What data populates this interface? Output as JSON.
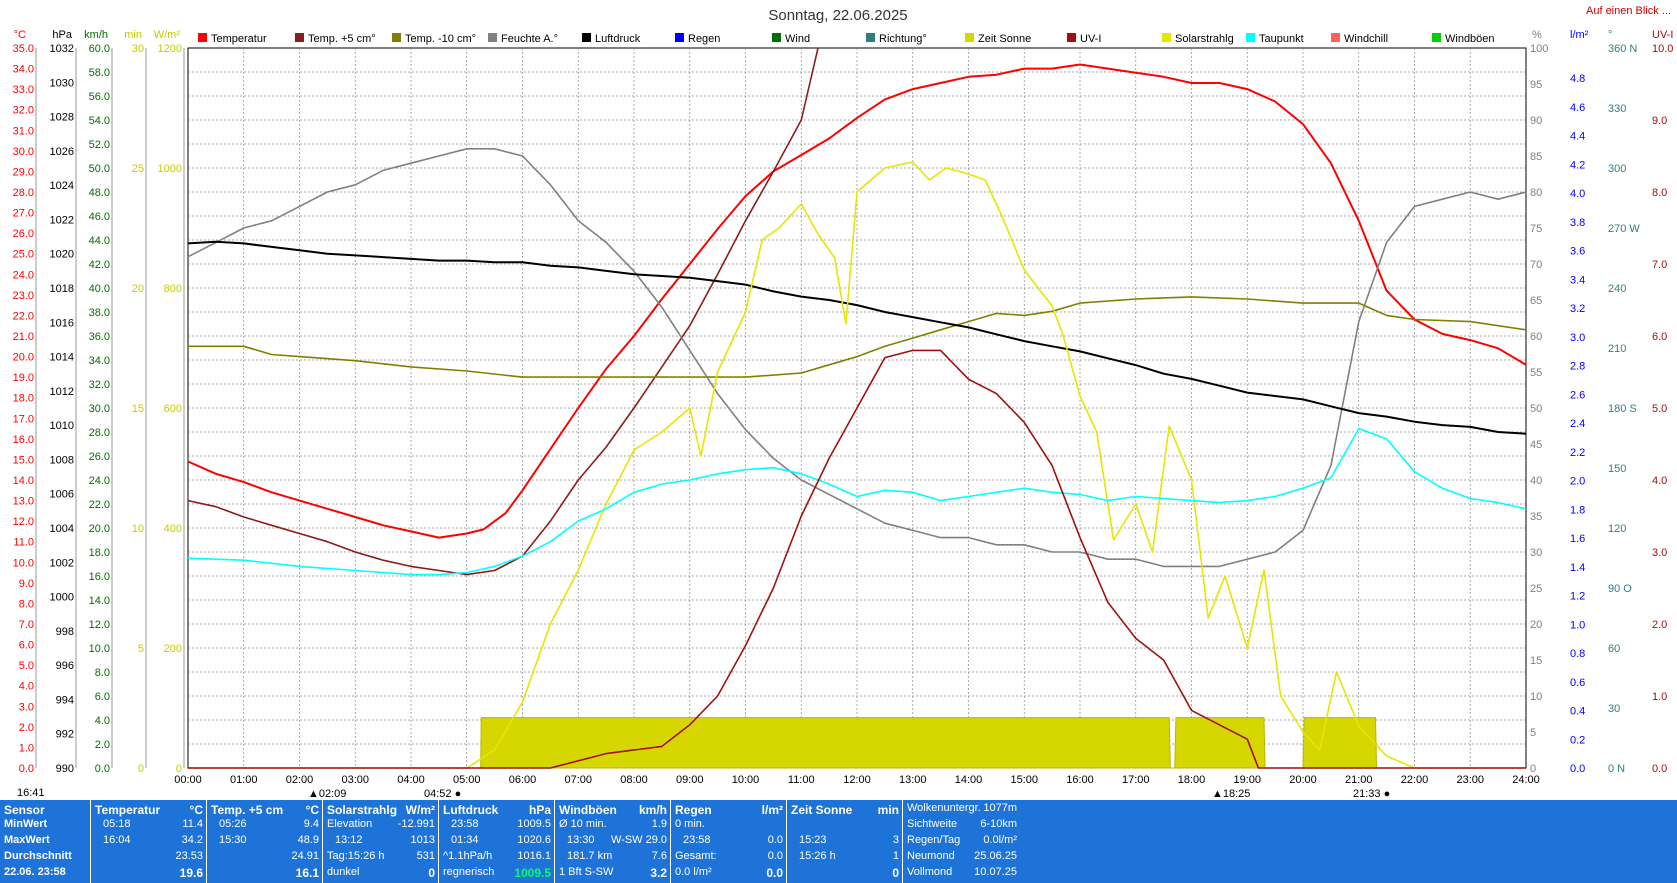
{
  "header": {
    "title": "Sonntag, 22.06.2025",
    "corner_link": "Auf einen Blick ..."
  },
  "legend": [
    {
      "label": "Temperatur",
      "color": "#ff0000"
    },
    {
      "label": "Temp. +5 cm°",
      "color": "#8b1c1c"
    },
    {
      "label": "Temp. -10 cm°",
      "color": "#808000"
    },
    {
      "label": "Feuchte A.°",
      "color": "#808080"
    },
    {
      "label": "Luftdruck",
      "color": "#000000"
    },
    {
      "label": "Regen",
      "color": "#0000ff"
    },
    {
      "label": "Wind",
      "color": "#007000"
    },
    {
      "label": "Richtung°",
      "color": "#2f7f7f"
    },
    {
      "label": "Zeit Sonne",
      "color": "#d6d600"
    },
    {
      "label": "UV-I",
      "color": "#a01010"
    },
    {
      "label": "Solarstrahlg",
      "color": "#e6e600"
    },
    {
      "label": "Taupunkt",
      "color": "#00ffff"
    },
    {
      "label": "Windchill",
      "color": "#ff6060"
    },
    {
      "label": "Windböen",
      "color": "#00d000"
    }
  ],
  "axes_left": [
    {
      "unit": "°C",
      "color": "#ff0000",
      "ticks": [
        "35.0",
        "34.0",
        "33.0",
        "32.0",
        "31.0",
        "30.0",
        "29.0",
        "28.0",
        "27.0",
        "26.0",
        "25.0",
        "24.0",
        "23.0",
        "22.0",
        "21.0",
        "20.0",
        "19.0",
        "18.0",
        "17.0",
        "16.0",
        "15.0",
        "14.0",
        "13.0",
        "12.0",
        "11.0",
        "10.0",
        "9.0",
        "8.0",
        "7.0",
        "6.0",
        "5.0",
        "4.0",
        "3.0",
        "2.0",
        "1.0",
        "0.0"
      ]
    },
    {
      "unit": "hPa",
      "color": "#000000",
      "ticks": [
        "1032",
        "1030",
        "1028",
        "1026",
        "1024",
        "1022",
        "1020",
        "1018",
        "1016",
        "1014",
        "1012",
        "1010",
        "1008",
        "1006",
        "1004",
        "1002",
        "1000",
        "998",
        "996",
        "994",
        "992",
        "990"
      ]
    },
    {
      "unit": "km/h",
      "color": "#007000",
      "ticks": [
        "60.0",
        "58.0",
        "56.0",
        "54.0",
        "52.0",
        "50.0",
        "48.0",
        "46.0",
        "44.0",
        "42.0",
        "40.0",
        "38.0",
        "36.0",
        "34.0",
        "32.0",
        "30.0",
        "28.0",
        "26.0",
        "24.0",
        "22.0",
        "20.0",
        "18.0",
        "16.0",
        "14.0",
        "12.0",
        "10.0",
        "8.0",
        "6.0",
        "4.0",
        "2.0",
        "0.0"
      ]
    },
    {
      "unit": "min",
      "color": "#c8c800",
      "ticks": [
        "30",
        "25",
        "20",
        "15",
        "10",
        "5",
        "0"
      ]
    },
    {
      "unit": "W/m²",
      "color": "#c8c800",
      "ticks": [
        "1200",
        "1000",
        "800",
        "600",
        "400",
        "200",
        "0"
      ]
    }
  ],
  "axes_right": [
    {
      "unit": "%",
      "color": "#808080",
      "ticks": [
        "100",
        "95",
        "90",
        "85",
        "80",
        "75",
        "70",
        "65",
        "60",
        "55",
        "50",
        "45",
        "40",
        "35",
        "30",
        "25",
        "20",
        "15",
        "10",
        "5",
        "0"
      ]
    },
    {
      "unit": "l/m²",
      "color": "#0000ff",
      "ticks": [
        "4.8",
        "4.6",
        "4.4",
        "4.2",
        "4.0",
        "3.8",
        "3.6",
        "3.4",
        "3.2",
        "3.0",
        "2.8",
        "2.6",
        "2.4",
        "2.2",
        "2.0",
        "1.8",
        "1.6",
        "1.4",
        "1.2",
        "1.0",
        "0.8",
        "0.6",
        "0.4",
        "0.2",
        "0.0"
      ]
    },
    {
      "unit": "°",
      "color": "#2f7f7f",
      "ticks": [
        "360 N",
        "330",
        "300",
        "270 W",
        "240",
        "210",
        "180 S",
        "150",
        "120",
        "90 O",
        "60",
        "30",
        "0 N"
      ]
    },
    {
      "unit": "UV-I",
      "color": "#a01010",
      "ticks": [
        "10.0",
        "9.0",
        "8.0",
        "7.0",
        "6.0",
        "5.0",
        "4.0",
        "3.0",
        "2.0",
        "1.0",
        "0.0"
      ]
    }
  ],
  "x_ticks": [
    "00:00",
    "01:00",
    "02:00",
    "03:00",
    "04:00",
    "05:00",
    "06:00",
    "07:00",
    "08:00",
    "09:00",
    "10:00",
    "11:00",
    "12:00",
    "13:00",
    "14:00",
    "15:00",
    "16:00",
    "17:00",
    "18:00",
    "19:00",
    "20:00",
    "21:00",
    "22:00",
    "23:00",
    "24:00"
  ],
  "events": {
    "left_time": "16:41",
    "sunrise_a": "02:09",
    "sunrise": "04:52",
    "sunset": "18:25",
    "sunset_b": "21:33"
  },
  "chart_data": {
    "type": "line",
    "title": "Sonntag, 22.06.2025",
    "x_unit": "hours",
    "series": [
      {
        "name": "Temperatur",
        "unit": "°C",
        "color": "#ff0000",
        "x": [
          0,
          0.5,
          1,
          1.5,
          2,
          2.5,
          3,
          3.5,
          4,
          4.5,
          5,
          5.3,
          5.7,
          6,
          6.5,
          7,
          7.5,
          8,
          8.5,
          9,
          9.5,
          10,
          10.5,
          11,
          11.5,
          12,
          12.5,
          13,
          13.5,
          14,
          14.5,
          15,
          15.5,
          16,
          16.5,
          17,
          17.5,
          18,
          18.5,
          19,
          19.5,
          20,
          20.5,
          21,
          21.5,
          22,
          22.5,
          23,
          23.5,
          24
        ],
        "values": [
          14.9,
          14.3,
          13.9,
          13.4,
          13.0,
          12.6,
          12.2,
          11.8,
          11.5,
          11.2,
          11.4,
          11.6,
          12.4,
          13.5,
          15.5,
          17.5,
          19.4,
          21.0,
          22.8,
          24.5,
          26.2,
          27.8,
          29.0,
          29.8,
          30.6,
          31.6,
          32.5,
          33.0,
          33.3,
          33.6,
          33.7,
          34.0,
          34.0,
          34.2,
          34.0,
          33.8,
          33.6,
          33.3,
          33.3,
          33.0,
          32.4,
          31.3,
          29.4,
          26.6,
          23.2,
          21.8,
          21.1,
          20.8,
          20.4,
          19.6
        ]
      },
      {
        "name": "Temp. +5 cm",
        "unit": "°C",
        "color": "#8b1c1c",
        "x": [
          0,
          0.5,
          1,
          1.5,
          2,
          2.5,
          3,
          3.5,
          4,
          4.5,
          5,
          5.5,
          6,
          6.5,
          7,
          7.5,
          8,
          8.5,
          9,
          9.5,
          10,
          10.5,
          11,
          11.3
        ],
        "values": [
          13.0,
          12.7,
          12.2,
          11.8,
          11.4,
          11.0,
          10.5,
          10.1,
          9.8,
          9.6,
          9.4,
          9.6,
          10.3,
          12.0,
          14.0,
          15.6,
          17.5,
          19.5,
          21.5,
          24.0,
          26.6,
          29.0,
          31.5,
          35.0
        ]
      },
      {
        "name": "Temp. -10 cm",
        "unit": "°C",
        "color": "#808000",
        "x": [
          0,
          1,
          1.5,
          2,
          3,
          4,
          5,
          6,
          7,
          8,
          9,
          10,
          11,
          11.5,
          12,
          12.5,
          13,
          13.5,
          14,
          14.5,
          15,
          15.5,
          16,
          17,
          18,
          19,
          20,
          21,
          21.5,
          22,
          23,
          24
        ],
        "values": [
          20.5,
          20.5,
          20.1,
          20.0,
          19.8,
          19.5,
          19.3,
          19.0,
          19.0,
          19.0,
          19.0,
          19.0,
          19.2,
          19.6,
          20.0,
          20.5,
          20.9,
          21.3,
          21.7,
          22.1,
          22.0,
          22.2,
          22.6,
          22.8,
          22.9,
          22.8,
          22.6,
          22.6,
          22.0,
          21.8,
          21.7,
          21.3
        ]
      },
      {
        "name": "Feuchte A.",
        "unit": "%",
        "color": "#808080",
        "x": [
          0,
          0.5,
          1,
          1.5,
          2,
          2.5,
          3,
          3.5,
          4,
          4.5,
          5,
          5.5,
          6,
          6.5,
          7,
          7.5,
          8,
          8.5,
          9,
          9.5,
          10,
          10.5,
          11,
          11.5,
          12,
          12.5,
          13,
          13.5,
          14,
          14.5,
          15,
          15.5,
          16,
          16.5,
          17,
          17.5,
          18,
          18.5,
          19,
          19.5,
          20,
          20.5,
          21,
          21.5,
          22,
          22.5,
          23,
          23.5,
          24
        ],
        "values": [
          71,
          73,
          75,
          76,
          78,
          80,
          81,
          83,
          84,
          85,
          86,
          86,
          85,
          81,
          76,
          73,
          69,
          64,
          58,
          52,
          47,
          43,
          40,
          38,
          36,
          34,
          33,
          32,
          32,
          31,
          31,
          30,
          30,
          29,
          29,
          28,
          28,
          28,
          29,
          30,
          33,
          42,
          62,
          73,
          78,
          79,
          80,
          79,
          80
        ]
      },
      {
        "name": "Luftdruck",
        "unit": "hPa",
        "color": "#000000",
        "x": [
          0,
          0.5,
          1,
          1.5,
          2,
          2.5,
          3,
          3.5,
          4,
          4.5,
          5,
          5.5,
          6,
          6.5,
          7,
          7.5,
          8,
          8.5,
          9,
          9.5,
          10,
          10.5,
          11,
          11.5,
          12,
          12.5,
          13,
          13.5,
          14,
          14.5,
          15,
          15.5,
          16,
          16.5,
          17,
          17.5,
          18,
          18.5,
          19,
          19.5,
          20,
          20.5,
          21,
          21.5,
          22,
          22.5,
          23,
          23.5,
          24
        ],
        "values": [
          1020.6,
          1020.7,
          1020.6,
          1020.4,
          1020.2,
          1020.0,
          1019.9,
          1019.8,
          1019.7,
          1019.6,
          1019.6,
          1019.5,
          1019.5,
          1019.3,
          1019.2,
          1019.0,
          1018.8,
          1018.7,
          1018.6,
          1018.4,
          1018.2,
          1017.8,
          1017.5,
          1017.3,
          1017.0,
          1016.6,
          1016.3,
          1016.0,
          1015.7,
          1015.3,
          1014.9,
          1014.6,
          1014.3,
          1013.9,
          1013.5,
          1013.0,
          1012.7,
          1012.3,
          1011.9,
          1011.7,
          1011.5,
          1011.1,
          1010.7,
          1010.5,
          1010.2,
          1010.0,
          1009.9,
          1009.6,
          1009.5
        ]
      },
      {
        "name": "Solarstrahlg",
        "unit": "W/m²",
        "color": "#e6e600",
        "x": [
          0,
          5,
          5.5,
          6,
          6.5,
          7,
          7.5,
          8,
          8.5,
          9,
          9.2,
          9.5,
          10,
          10.3,
          10.6,
          11,
          11.3,
          11.6,
          11.8,
          12,
          12.5,
          13,
          13.3,
          13.6,
          14,
          14.3,
          14.6,
          15,
          15.5,
          15.7,
          16,
          16.3,
          16.6,
          17,
          17.3,
          17.6,
          18,
          18.3,
          18.6,
          19,
          19.3,
          19.6,
          20,
          20.3,
          20.6,
          21,
          21.5,
          22,
          24
        ],
        "values": [
          0,
          0,
          30,
          110,
          240,
          330,
          440,
          530,
          560,
          600,
          520,
          660,
          760,
          880,
          900,
          940,
          890,
          850,
          740,
          960,
          1000,
          1010,
          980,
          1000,
          990,
          980,
          920,
          830,
          770,
          720,
          620,
          560,
          380,
          440,
          360,
          570,
          480,
          250,
          320,
          200,
          330,
          120,
          60,
          30,
          160,
          70,
          20,
          0,
          0
        ]
      },
      {
        "name": "Taupunkt",
        "unit": "°C",
        "color": "#00ffff",
        "x": [
          0,
          1,
          2,
          3,
          4,
          4.5,
          5,
          5.5,
          6,
          6.5,
          7,
          7.5,
          8,
          8.5,
          9,
          9.5,
          10,
          10.5,
          11,
          11.5,
          12,
          12.5,
          13,
          13.5,
          14,
          14.5,
          15,
          15.5,
          16,
          16.5,
          17,
          17.5,
          18,
          18.5,
          19,
          19.5,
          20,
          20.5,
          21,
          21.5,
          22,
          22.5,
          23,
          23.5,
          24
        ],
        "values": [
          10.2,
          10.1,
          9.8,
          9.6,
          9.4,
          9.4,
          9.5,
          9.8,
          10.3,
          11.0,
          12.0,
          12.6,
          13.4,
          13.8,
          14.0,
          14.3,
          14.5,
          14.6,
          14.3,
          13.8,
          13.2,
          13.5,
          13.4,
          13.0,
          13.2,
          13.4,
          13.6,
          13.4,
          13.3,
          13.0,
          13.2,
          13.1,
          13.0,
          12.9,
          13.0,
          13.2,
          13.6,
          14.1,
          16.5,
          16.0,
          14.4,
          13.6,
          13.1,
          12.9,
          12.6
        ]
      },
      {
        "name": "UV-I",
        "unit": "UV-I",
        "color": "#a01010",
        "x": [
          0,
          6.5,
          7.5,
          8.5,
          9,
          9.5,
          10,
          10.5,
          11,
          11.5,
          12,
          12.5,
          13,
          13.5,
          14,
          14.5,
          15,
          15.5,
          16,
          16.5,
          17,
          17.5,
          18,
          18.5,
          19,
          19.2,
          24
        ],
        "values": [
          0,
          0,
          0.2,
          0.3,
          0.6,
          1.0,
          1.7,
          2.5,
          3.5,
          4.3,
          5.0,
          5.7,
          5.8,
          5.8,
          5.4,
          5.2,
          4.8,
          4.2,
          3.2,
          2.3,
          1.8,
          1.5,
          0.8,
          0.6,
          0.4,
          0,
          0
        ]
      },
      {
        "name": "Zeit Sonne",
        "unit": "min",
        "color": "#d6d600",
        "x": [
          0,
          5.25,
          5.26,
          17.6,
          17.62,
          17.7,
          17.72,
          19.3,
          19.32,
          20,
          20.02,
          21.3,
          21.32,
          24
        ],
        "values": [
          0,
          0,
          2.1,
          2.1,
          0,
          0,
          2.1,
          2.1,
          0,
          0,
          2.1,
          2.1,
          0,
          0
        ]
      }
    ]
  },
  "stats": {
    "sensor": {
      "title": "Sensor",
      "rows": [
        "MinWert",
        "MaxWert",
        "Durchschnitt",
        "22.06. 23:58"
      ]
    },
    "temperature": {
      "title": "Temperatur",
      "unit": "°C",
      "rows": [
        [
          "05:18",
          "11.4"
        ],
        [
          "16:04",
          "34.2"
        ],
        [
          "",
          "23.53"
        ],
        [
          "",
          "19.6"
        ]
      ]
    },
    "temp5": {
      "title": "Temp. +5 cm",
      "unit": "°C",
      "rows": [
        [
          "05:26",
          "9.4"
        ],
        [
          "15:30",
          "48.9"
        ],
        [
          "",
          "24.91"
        ],
        [
          "",
          "16.1"
        ]
      ]
    },
    "solar": {
      "title": "Solarstrahlg",
      "unit": "W/m²",
      "rows": [
        [
          "Elevation",
          "-12.991"
        ],
        [
          "13:12",
          "1013"
        ],
        [
          "Tag:15:26 h",
          "531"
        ],
        [
          "dunkel",
          "0"
        ]
      ]
    },
    "pressure": {
      "title": "Luftdruck",
      "unit": "hPa",
      "rows": [
        [
          "23:58",
          "1009.5"
        ],
        [
          "01:34",
          "1020.6"
        ],
        [
          "^1.1hPa/h",
          "1016.1"
        ],
        [
          "regnerisch",
          "1009.5"
        ]
      ]
    },
    "gusts": {
      "title": "Windböen",
      "unit": "km/h",
      "rows": [
        [
          "Ø 10 min.",
          "1.9"
        ],
        [
          "13:30",
          "W-SW 29.0"
        ],
        [
          "181.7 km",
          "7.6"
        ],
        [
          "1 Bft S-SW",
          "3.2"
        ]
      ]
    },
    "rain": {
      "title": "Regen",
      "unit": "l/m²",
      "rows": [
        [
          "0 min.",
          ""
        ],
        [
          "23:58",
          "0.0"
        ],
        [
          "Gesamt:",
          "0.0"
        ],
        [
          "0.0 l/m²",
          "0.0"
        ]
      ]
    },
    "sun": {
      "title": "Zeit Sonne",
      "unit": "min",
      "rows": [
        [
          "",
          ""
        ],
        [
          "15:23",
          "3"
        ],
        [
          "15:26 h",
          "1"
        ],
        [
          "",
          "0"
        ]
      ]
    },
    "misc": {
      "rows": [
        [
          "Wolkenuntergr.",
          "1077m"
        ],
        [
          "Sichtweite",
          "6-10km"
        ],
        [
          "Regen/Tag",
          "0.0l/m²"
        ],
        [
          "Neumond",
          "25.06.25"
        ],
        [
          "Vollmond",
          "10.07.25"
        ]
      ]
    }
  }
}
